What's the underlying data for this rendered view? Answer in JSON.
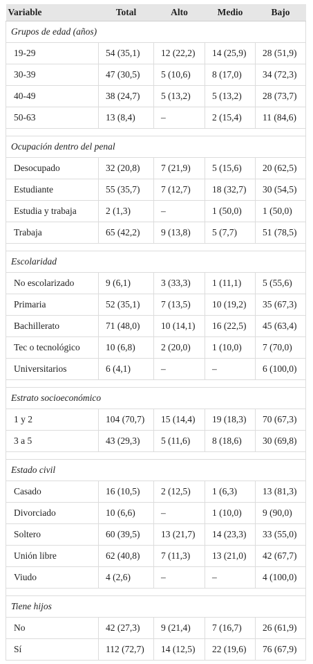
{
  "table": {
    "header": [
      "Variable",
      "Total",
      "Alto",
      "Medio",
      "Bajo"
    ],
    "sections": [
      {
        "title": "Grupos de edad (años)",
        "rows": [
          [
            "19-29",
            "54 (35,1)",
            "12 (22,2)",
            "14 (25,9)",
            "28 (51,9)"
          ],
          [
            "30-39",
            "47 (30,5)",
            "5 (10,6)",
            "8 (17,0)",
            "34 (72,3)"
          ],
          [
            "40-49",
            "38 (24,7)",
            "5 (13,2)",
            "5 (13,2)",
            "28 (73,7)"
          ],
          [
            "50-63",
            "13 (8,4)",
            "–",
            "2 (15,4)",
            "11 (84,6)"
          ]
        ]
      },
      {
        "title": "Ocupación dentro del penal",
        "rows": [
          [
            "Desocupado",
            "32 (20,8)",
            "7 (21,9)",
            "5 (15,6)",
            "20 (62,5)"
          ],
          [
            "Estudiante",
            "55 (35,7)",
            "7 (12,7)",
            "18 (32,7)",
            "30 (54,5)"
          ],
          [
            "Estudia y trabaja",
            "2 (1,3)",
            "–",
            "1 (50,0)",
            "1 (50,0)"
          ],
          [
            "Trabaja",
            "65 (42,2)",
            "9 (13,8)",
            "5 (7,7)",
            "51 (78,5)"
          ]
        ]
      },
      {
        "title": "Escolaridad",
        "rows": [
          [
            "No escolarizado",
            "9 (6,1)",
            "3 (33,3)",
            "1 (11,1)",
            "5 (55,6)"
          ],
          [
            "Primaria",
            "52 (35,1)",
            "7 (13,5)",
            "10 (19,2)",
            "35 (67,3)"
          ],
          [
            "Bachillerato",
            "71 (48,0)",
            "10 (14,1)",
            "16 (22,5)",
            "45 (63,4)"
          ],
          [
            "Tec o tecnológico",
            "10 (6,8)",
            "2 (20,0)",
            "1 (10,0)",
            "7 (70,0)"
          ],
          [
            "Universitarios",
            "6 (4,1)",
            "–",
            "–",
            "6 (100,0)"
          ]
        ]
      },
      {
        "title": "Estrato socioeconómico",
        "rows": [
          [
            "1 y 2",
            "104 (70,7)",
            "15 (14,4)",
            "19 (18,3)",
            "70 (67,3)"
          ],
          [
            "3 a 5",
            "43 (29,3)",
            "5 (11,6)",
            "8 (18,6)",
            "30 (69,8)"
          ]
        ]
      },
      {
        "title": "Estado civil",
        "rows": [
          [
            "Casado",
            "16 (10,5)",
            "2 (12,5)",
            "1 (6,3)",
            "13 (81,3)"
          ],
          [
            "Divorciado",
            "10 (6,6)",
            "–",
            "1 (10,0)",
            "9 (90,0)"
          ],
          [
            "Soltero",
            "60 (39,5)",
            "13 (21,7)",
            "14 (23,3)",
            "33 (55,0)"
          ],
          [
            "Unión libre",
            "62 (40,8)",
            "7 (11,3)",
            "13 (21,0)",
            "42 (67,7)"
          ],
          [
            "Viudo",
            "4 (2,6)",
            "–",
            "–",
            "4 (100,0)"
          ]
        ]
      },
      {
        "title": "Tiene hijos",
        "rows": [
          [
            "No",
            "42 (27,3)",
            "9 (21,4)",
            "7 (16,7)",
            "26 (61,9)"
          ],
          [
            "Sí",
            "112 (72,7)",
            "14 (12,5)",
            "22 (19,6)",
            "76 (67,9)"
          ]
        ]
      }
    ]
  }
}
